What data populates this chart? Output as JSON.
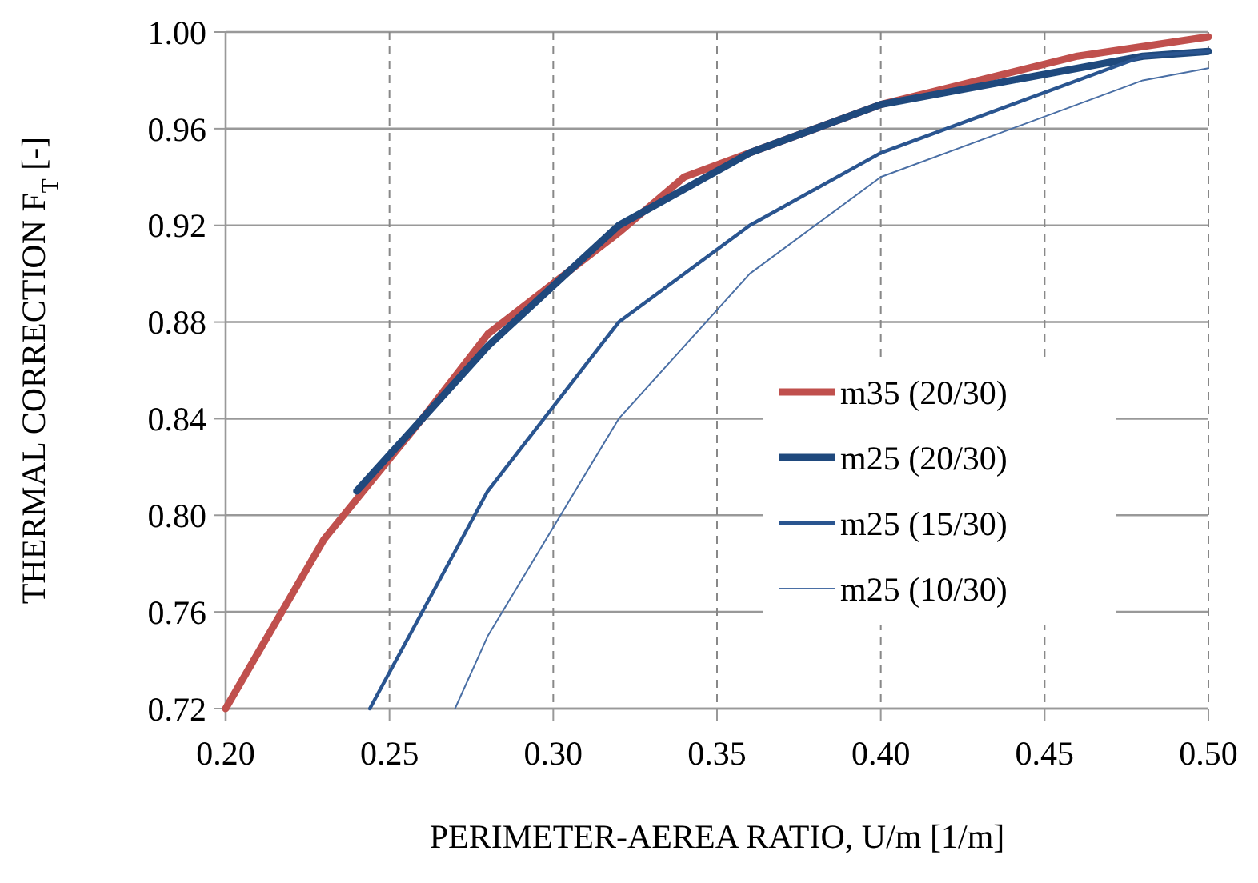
{
  "chart_data": {
    "type": "line",
    "xlabel": "PERIMETER-AEREA RATIO, U/m [1/m]",
    "ylabel": "THERMAL CORRECTION F$_{T}$ [-]",
    "xlim": [
      0.2,
      0.5
    ],
    "xticks": [
      {
        "value": 0.2,
        "label": "0.20"
      },
      {
        "value": 0.25,
        "label": "0.25"
      },
      {
        "value": 0.3,
        "label": "0.30"
      },
      {
        "value": 0.35,
        "label": "0.35"
      },
      {
        "value": 0.4,
        "label": "0.40"
      },
      {
        "value": 0.45,
        "label": "0.45"
      },
      {
        "value": 0.5,
        "label": "0.50"
      }
    ],
    "ylim": [
      0.72,
      1.0
    ],
    "yticks": [
      {
        "value": 0.72,
        "label": "0.72"
      },
      {
        "value": 0.76,
        "label": "0.76"
      },
      {
        "value": 0.8,
        "label": "0.80"
      },
      {
        "value": 0.84,
        "label": "0.84"
      },
      {
        "value": 0.88,
        "label": "0.88"
      },
      {
        "value": 0.92,
        "label": "0.92"
      },
      {
        "value": 0.96,
        "label": "0.96"
      },
      {
        "value": 1.0,
        "label": "1.00"
      }
    ],
    "grid": true,
    "legend": "right",
    "marker": "none",
    "line_style": "solid",
    "series": [
      {
        "name": "m35 (20/30)",
        "color": "#c0504d",
        "x": [
          0.2,
          0.23,
          0.26,
          0.28,
          0.32,
          0.34,
          0.36,
          0.4,
          0.46,
          0.5
        ],
        "values": [
          0.72,
          0.79,
          0.84,
          0.875,
          0.917,
          0.94,
          0.95,
          0.97,
          0.99,
          0.998
        ]
      },
      {
        "name": "m25 (20/30)",
        "color": "#1f497d",
        "x": [
          0.24,
          0.28,
          0.32,
          0.36,
          0.4,
          0.48,
          0.5
        ],
        "values": [
          0.81,
          0.87,
          0.92,
          0.95,
          0.97,
          0.99,
          0.992
        ]
      },
      {
        "name": "m25 (15/30)",
        "color": "#2a5590",
        "x": [
          0.244,
          0.28,
          0.32,
          0.36,
          0.4,
          0.48,
          0.5
        ],
        "values": [
          0.72,
          0.81,
          0.88,
          0.92,
          0.95,
          0.99,
          0.992
        ]
      },
      {
        "name": "m25 (10/30)",
        "color": "#4a6fa5",
        "x": [
          0.27,
          0.28,
          0.32,
          0.36,
          0.4,
          0.48,
          0.5
        ],
        "values": [
          0.72,
          0.75,
          0.84,
          0.9,
          0.94,
          0.98,
          0.985
        ]
      }
    ]
  }
}
